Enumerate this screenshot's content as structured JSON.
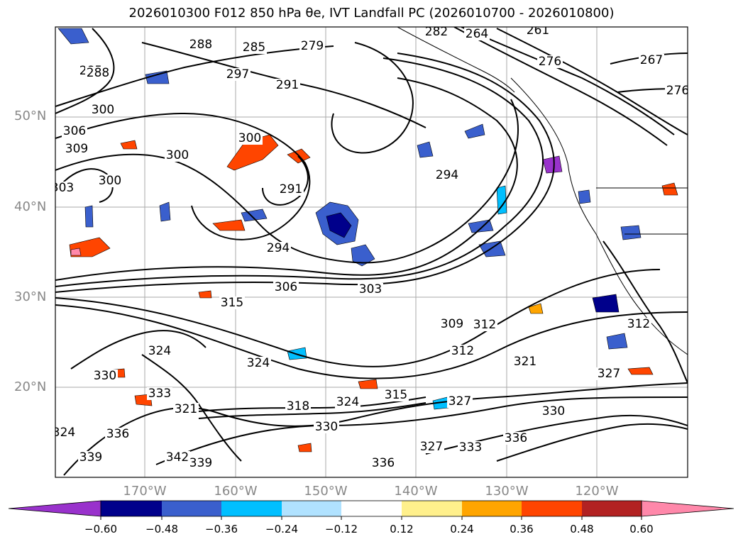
{
  "title": "2026010300 F012 850 hPa θe, IVT Landfall PC (2026010700 - 2026010800)",
  "lat_labels": [
    "50°N",
    "40°N",
    "30°N",
    "20°N"
  ],
  "lon_labels": [
    "170°W",
    "160°W",
    "150°W",
    "140°W",
    "130°W",
    "120°W"
  ],
  "contour_labels": [
    "261",
    "264",
    "267",
    "276",
    "279",
    "282",
    "285",
    "288",
    "291",
    "294",
    "297",
    "300",
    "303",
    "306",
    "309",
    "312",
    "315",
    "318",
    "321",
    "324",
    "327",
    "330",
    "333",
    "336",
    "339",
    "342"
  ],
  "colorbar": {
    "ticks": [
      "−0.60",
      "−0.48",
      "−0.36",
      "−0.24",
      "−0.12",
      "0.12",
      "0.24",
      "0.36",
      "0.48",
      "0.60"
    ],
    "colors": [
      "#9932cc",
      "#00008b",
      "#3a5fcd",
      "#00bfff",
      "#b0e2ff",
      "#ffffff",
      "#fff08c",
      "#ffa500",
      "#ff4500",
      "#b22222",
      "#ff88aa",
      "#ff88aa"
    ],
    "extend": "both"
  },
  "colors": {
    "contour": "#000000",
    "grid": "#aaaaaa",
    "axis_labels": "#888888"
  }
}
